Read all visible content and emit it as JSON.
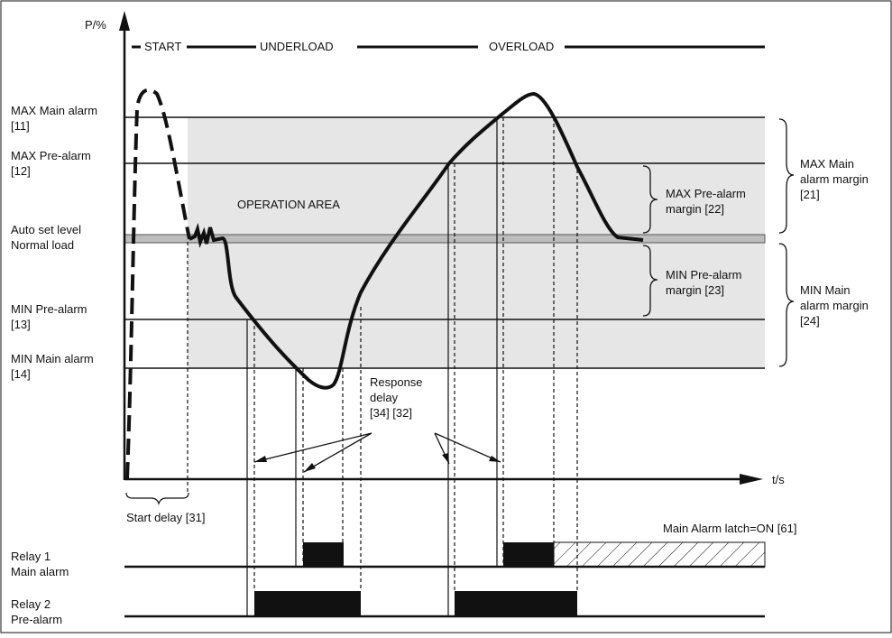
{
  "axes": {
    "y_label": "P/%",
    "x_label": "t/s"
  },
  "phases": {
    "start": "START",
    "underload": "UNDERLOAD",
    "overload": "OVERLOAD"
  },
  "levels": {
    "max_main": [
      "MAX Main alarm",
      "[11]"
    ],
    "max_pre": [
      "MAX Pre-alarm",
      "[12]"
    ],
    "auto_set": [
      "Auto set level",
      "Normal load"
    ],
    "min_pre": [
      "MIN Pre-alarm",
      "[13]"
    ],
    "min_main": [
      "MIN Main alarm",
      "[14]"
    ]
  },
  "area_label": "OPERATION AREA",
  "margins": {
    "max_pre": [
      "MAX Pre-alarm",
      "margin [22]"
    ],
    "min_pre": [
      "MIN Pre-alarm",
      "margin [23]"
    ],
    "max_main": [
      "MAX Main",
      "alarm margin",
      "[21]"
    ],
    "min_main": [
      "MIN Main",
      "alarm margin",
      "[24]"
    ]
  },
  "response_delay": [
    "Response",
    "delay",
    "[34] [32]"
  ],
  "start_delay": "Start delay [31]",
  "latch_label": "Main Alarm latch=ON [61]",
  "relays": {
    "relay1": [
      "Relay 1",
      "Main alarm"
    ],
    "relay2": [
      "Relay 2",
      "Pre-alarm"
    ]
  },
  "colors": {
    "area": "#e6e6e6",
    "band": "#bdbdbd",
    "ink": "#111111"
  }
}
